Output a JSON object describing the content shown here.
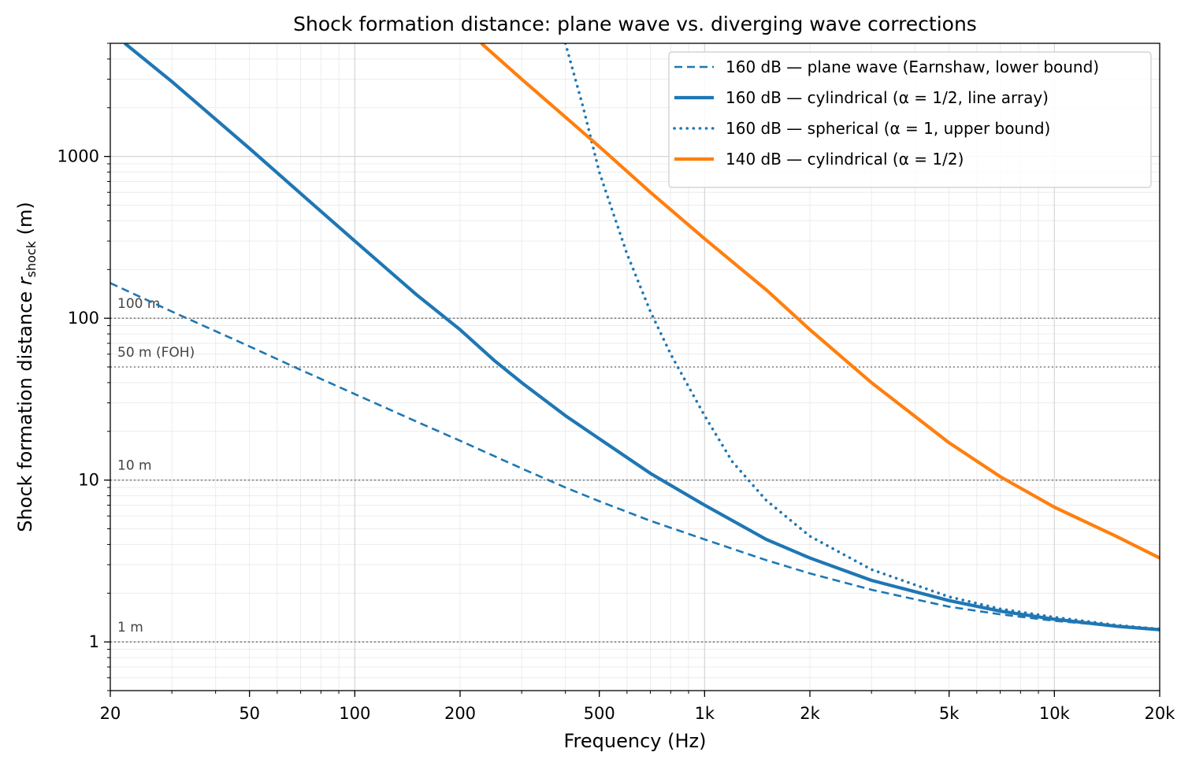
{
  "chart_data": {
    "type": "line",
    "title": "Shock formation distance: plane wave vs. diverging wave corrections",
    "xlabel": "Frequency (Hz)",
    "ylabel_main": "Shock formation distance ",
    "ylabel_var": "r",
    "ylabel_sub": "shock",
    "ylabel_unit": " (m)",
    "xscale": "log",
    "yscale": "log",
    "xlim": [
      20,
      20000
    ],
    "ylim": [
      0.5,
      5000
    ],
    "grid": true,
    "legend_position": "top-right",
    "x_ticks": [
      {
        "value": 20,
        "label": "20"
      },
      {
        "value": 50,
        "label": "50"
      },
      {
        "value": 100,
        "label": "100"
      },
      {
        "value": 200,
        "label": "200"
      },
      {
        "value": 500,
        "label": "500"
      },
      {
        "value": 1000,
        "label": "1k"
      },
      {
        "value": 2000,
        "label": "2k"
      },
      {
        "value": 5000,
        "label": "5k"
      },
      {
        "value": 10000,
        "label": "10k"
      },
      {
        "value": 20000,
        "label": "20k"
      }
    ],
    "y_ticks": [
      {
        "value": 1,
        "label": "1"
      },
      {
        "value": 10,
        "label": "10"
      },
      {
        "value": 100,
        "label": "100"
      },
      {
        "value": 1000,
        "label": "1000"
      }
    ],
    "reference_lines": [
      {
        "value": 100,
        "label": "100 m"
      },
      {
        "value": 50,
        "label": "50 m (FOH)"
      },
      {
        "value": 10,
        "label": "10 m"
      },
      {
        "value": 1,
        "label": "1 m"
      }
    ],
    "series": [
      {
        "name": "160 dB — plane wave (Earnshaw, lower bound)",
        "color": "#1f77b4",
        "style": "dashed",
        "x": [
          20,
          30,
          50,
          70,
          100,
          150,
          200,
          300,
          400,
          500,
          700,
          1000,
          1500,
          2000,
          3000,
          5000,
          7000,
          10000,
          15000,
          20000
        ],
        "y": [
          165,
          110,
          67,
          48,
          34,
          23,
          17.5,
          11.8,
          9.0,
          7.4,
          5.6,
          4.3,
          3.2,
          2.65,
          2.1,
          1.65,
          1.48,
          1.35,
          1.25,
          1.19
        ]
      },
      {
        "name": "160 dB — cylindrical (α = 1/2, line array)",
        "color": "#1f77b4",
        "style": "solid",
        "x": [
          22,
          30,
          50,
          70,
          100,
          150,
          200,
          250,
          300,
          400,
          500,
          700,
          1000,
          1500,
          2000,
          3000,
          5000,
          7000,
          10000,
          15000,
          20000
        ],
        "y": [
          5000,
          2900,
          1120,
          590,
          300,
          140,
          85,
          55,
          40,
          25,
          18,
          11,
          7.0,
          4.3,
          3.3,
          2.4,
          1.8,
          1.55,
          1.38,
          1.25,
          1.19
        ]
      },
      {
        "name": "160 dB — spherical (α = 1, upper bound)",
        "color": "#1f77b4",
        "style": "dotted",
        "x": [
          400,
          450,
          500,
          600,
          700,
          800,
          1000,
          1200,
          1500,
          2000,
          3000,
          5000,
          7000,
          10000,
          15000,
          20000
        ],
        "y": [
          5000,
          2000,
          800,
          250,
          110,
          60,
          25,
          13,
          7.5,
          4.5,
          2.8,
          1.9,
          1.6,
          1.42,
          1.27,
          1.2
        ]
      },
      {
        "name": "140 dB — cylindrical (α = 1/2)",
        "color": "#ff7f0e",
        "style": "solid",
        "x": [
          230,
          300,
          400,
          500,
          700,
          1000,
          1500,
          2000,
          3000,
          5000,
          7000,
          10000,
          15000,
          20000
        ],
        "y": [
          5000,
          3000,
          1750,
          1150,
          600,
          310,
          150,
          85,
          40,
          17,
          10.5,
          6.8,
          4.5,
          3.3
        ]
      }
    ]
  }
}
